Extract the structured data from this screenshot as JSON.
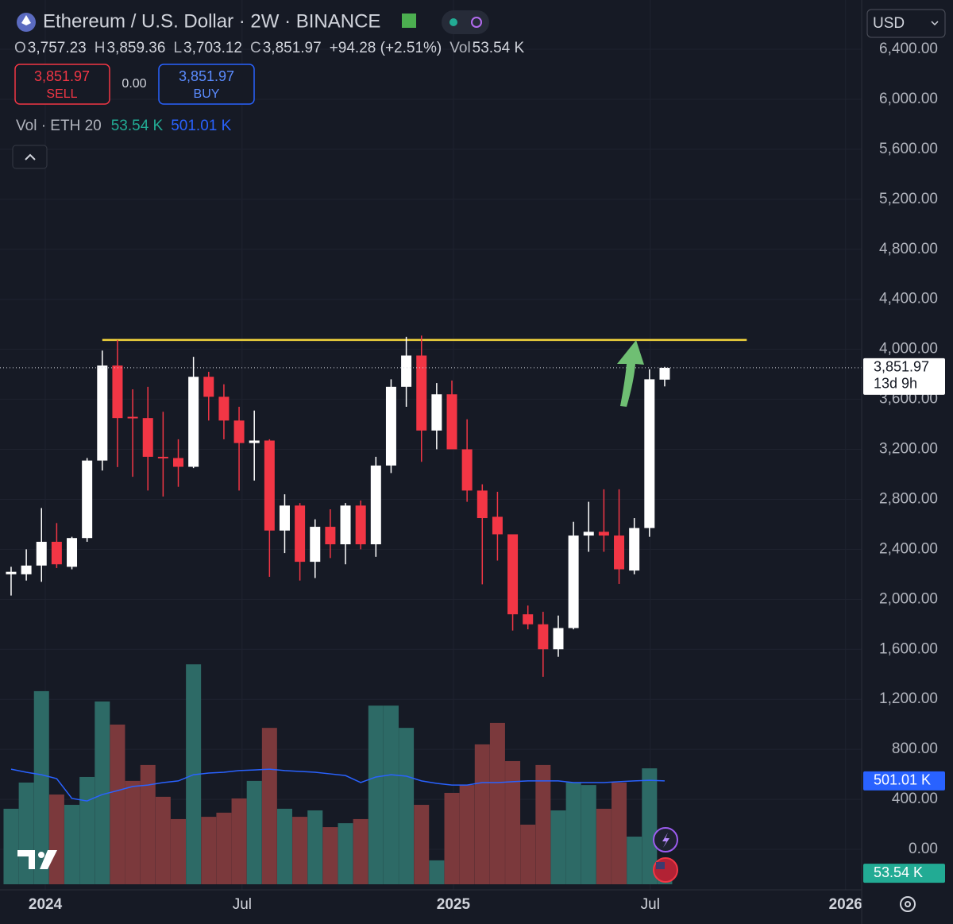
{
  "header": {
    "title": "Ethereum / U.S. Dollar · 2W · BINANCE",
    "ohlc": [
      {
        "key": "O",
        "value": "3,757.23"
      },
      {
        "key": "H",
        "value": "3,859.36"
      },
      {
        "key": "L",
        "value": "3,703.12"
      },
      {
        "key": "C",
        "value": "3,851.97"
      }
    ],
    "change": "+94.28 (+2.51%)",
    "vol_key": "Vol",
    "vol_value": "53.54 K",
    "sell_price": "3,851.97",
    "sell_label": "SELL",
    "spread": "0.00",
    "buy_price": "3,851.97",
    "buy_label": "BUY",
    "indicator": "Vol · ETH 20",
    "indicator_vol": "53.54 K",
    "indicator_ma": "501.01 K",
    "currency": "USD",
    "price_tag": "3,851.97",
    "countdown": "13d 9h",
    "ma_tag": "501.01 K",
    "vol_tag": "53.54 K"
  },
  "chart_data": {
    "type": "candlestick",
    "open": [
      2200,
      2200,
      2270,
      2460,
      2260,
      2490,
      3110,
      3870,
      3460,
      3450,
      3140,
      3130,
      3060,
      3780,
      3620,
      3430,
      3250,
      3270,
      2550,
      2750,
      2300,
      2580,
      2440,
      2750,
      2440,
      3070,
      3700,
      3950,
      3350,
      3640,
      3200,
      2870,
      2660,
      2520,
      1880,
      1800,
      1600,
      1770,
      2510,
      2540,
      2510,
      2230,
      2570,
      3757.23
    ],
    "high": [
      2260,
      2400,
      2730,
      2610,
      2500,
      3130,
      3990,
      4075,
      3680,
      3700,
      3500,
      3280,
      3940,
      3820,
      3720,
      3540,
      3510,
      3280,
      2840,
      2770,
      2640,
      2720,
      2770,
      2790,
      3140,
      3760,
      4100,
      4110,
      3730,
      3750,
      3440,
      2920,
      2860,
      2520,
      1950,
      1900,
      1870,
      2620,
      2780,
      2880,
      2880,
      2650,
      3840,
      3859.36
    ],
    "low": [
      2030,
      2150,
      2140,
      2250,
      2240,
      2460,
      3030,
      3058,
      2980,
      2870,
      2822,
      2900,
      3050,
      3430,
      3280,
      2870,
      2950,
      2180,
      2370,
      2150,
      2170,
      2330,
      2280,
      2400,
      2340,
      3010,
      3540,
      3100,
      3200,
      3200,
      2780,
      2120,
      2310,
      1750,
      1760,
      1380,
      1540,
      1760,
      2380,
      2380,
      2123,
      2200,
      2500,
      3703.12
    ],
    "close": [
      2220,
      2270,
      2460,
      2280,
      2490,
      3110,
      3870,
      3450,
      3450,
      3140,
      3130,
      3060,
      3780,
      3620,
      3430,
      3250,
      3270,
      2550,
      2750,
      2300,
      2580,
      2440,
      2750,
      2440,
      3070,
      3700,
      3950,
      3350,
      3640,
      3200,
      2870,
      2650,
      2520,
      1880,
      1800,
      1600,
      1770,
      2510,
      2540,
      2510,
      2240,
      2570,
      3760,
      3851.97
    ],
    "volume": [
      366,
      493,
      936,
      435,
      385,
      520,
      886,
      774,
      501,
      578,
      424,
      316,
      1066,
      327,
      347,
      416,
      501,
      758,
      366,
      327,
      358,
      277,
      296,
      316,
      866,
      866,
      758,
      385,
      116,
      443,
      481,
      678,
      782,
      597,
      289,
      578,
      358,
      493,
      481,
      366,
      493,
      231,
      562,
      53.54
    ],
    "volume_ma": [
      558,
      543,
      531,
      512,
      416,
      404,
      435,
      454,
      474,
      481,
      493,
      501,
      531,
      539,
      543,
      551,
      554,
      558,
      551,
      547,
      543,
      535,
      527,
      493,
      520,
      531,
      524,
      501,
      489,
      481,
      481,
      493,
      493,
      497,
      501,
      501,
      501,
      493,
      493,
      493,
      497,
      501,
      504,
      501.01
    ],
    "xlim": [
      -0.73,
      55.96
    ],
    "xticks": [
      {
        "value": 2.25,
        "label": "2024"
      },
      {
        "value": 15.2,
        "label": "Jul"
      },
      {
        "value": 29.1,
        "label": "2025"
      },
      {
        "value": 42.05,
        "label": "Jul"
      },
      {
        "value": 54.9,
        "label": "2026"
      }
    ],
    "ylim": [
      0,
      6400
    ],
    "yticks": [
      {
        "value": 0,
        "label": "0.00"
      },
      {
        "value": 400,
        "label": "400.00"
      },
      {
        "value": 800,
        "label": "800.00"
      },
      {
        "value": 1200,
        "label": "1,200.00"
      },
      {
        "value": 1600,
        "label": "1,600.00"
      },
      {
        "value": 2000,
        "label": "2,000.00"
      },
      {
        "value": 2400,
        "label": "2,400.00"
      },
      {
        "value": 2800,
        "label": "2,800.00"
      },
      {
        "value": 3200,
        "label": "3,200.00"
      },
      {
        "value": 3600,
        "label": "3,600.00"
      },
      {
        "value": 4000,
        "label": "4,000.00"
      },
      {
        "value": 4400,
        "label": "4,400.00"
      },
      {
        "value": 4800,
        "label": "4,800.00"
      },
      {
        "value": 5200,
        "label": "5,200.00"
      },
      {
        "value": 5600,
        "label": "5,600.00"
      },
      {
        "value": 6000,
        "label": "6,000.00"
      },
      {
        "value": 6400,
        "label": "6,400.00"
      }
    ],
    "volume_ylim": [
      0,
      1109
    ],
    "up_color": "#ffffff",
    "down_color": "#f23645",
    "volume_up_color": "#2d6a66",
    "volume_down_color": "#7b393c",
    "ma_color": "#2962ff",
    "hline": {
      "value": 4075,
      "start": 6,
      "end": 48.4,
      "color": "#f0d33c"
    },
    "grid": true
  }
}
